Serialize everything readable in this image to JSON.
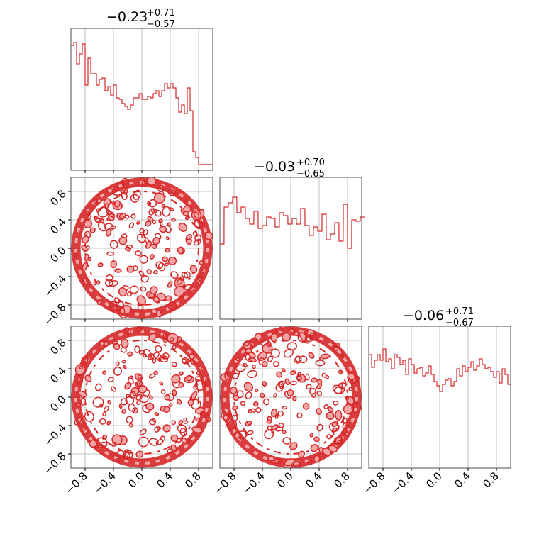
{
  "figure": {
    "background": "#ffffff",
    "accent": "#d62728",
    "fill_light": "#f4a6a6",
    "grid_color": "#b0b0b0"
  },
  "chart_data": {
    "type": "corner",
    "parameters": 3,
    "range": [
      -1,
      1
    ],
    "tick_values": [
      -0.8,
      -0.4,
      0.0,
      0.4,
      0.8
    ],
    "tick_labels": [
      "−0.8",
      "−0.4",
      "0.0",
      "0.4",
      "0.8"
    ],
    "grid": true,
    "titles": [
      {
        "main": "−0.23",
        "plus": "+0.71",
        "minus": "−0.57"
      },
      {
        "main": "−0.03",
        "plus": "+0.70",
        "minus": "−0.65"
      },
      {
        "main": "−0.06",
        "plus": "+0.71",
        "minus": "−0.67"
      }
    ],
    "histograms": [
      {
        "bins": [
          -1.0,
          -0.96,
          -0.92,
          -0.88,
          -0.84,
          -0.8,
          -0.76,
          -0.72,
          -0.68,
          -0.64,
          -0.6,
          -0.56,
          -0.52,
          -0.48,
          -0.44,
          -0.4,
          -0.36,
          -0.32,
          -0.28,
          -0.24,
          -0.2,
          -0.16,
          -0.12,
          -0.08,
          -0.04,
          0.0,
          0.04,
          0.08,
          0.12,
          0.16,
          0.2,
          0.24,
          0.28,
          0.32,
          0.36,
          0.4,
          0.44,
          0.48,
          0.52,
          0.56,
          0.6,
          0.64,
          0.68,
          0.72,
          0.76,
          0.8,
          0.84,
          0.88,
          0.92,
          0.96
        ],
        "values": [
          0.88,
          0.9,
          0.75,
          0.82,
          0.89,
          0.6,
          0.79,
          0.68,
          0.68,
          0.6,
          0.64,
          0.65,
          0.56,
          0.59,
          0.53,
          0.6,
          0.51,
          0.5,
          0.47,
          0.45,
          0.43,
          0.46,
          0.51,
          0.51,
          0.54,
          0.5,
          0.5,
          0.52,
          0.51,
          0.54,
          0.56,
          0.52,
          0.56,
          0.61,
          0.58,
          0.61,
          0.58,
          0.51,
          0.41,
          0.46,
          0.4,
          0.58,
          0.42,
          0.13,
          0.09,
          0.04,
          0.04,
          0.04,
          0.04,
          0.04
        ]
      },
      {
        "bins": [
          -1.0,
          -0.94,
          -0.88,
          -0.82,
          -0.76,
          -0.7,
          -0.64,
          -0.58,
          -0.52,
          -0.46,
          -0.4,
          -0.34,
          -0.28,
          -0.22,
          -0.16,
          -0.1,
          -0.04,
          0.02,
          0.08,
          0.14,
          0.2,
          0.26,
          0.32,
          0.38,
          0.44,
          0.5,
          0.56,
          0.62,
          0.68,
          0.74,
          0.8,
          0.86,
          0.92,
          0.98
        ],
        "values": [
          0.53,
          0.79,
          0.82,
          0.86,
          0.75,
          0.79,
          0.71,
          0.67,
          0.76,
          0.64,
          0.66,
          0.72,
          0.71,
          0.65,
          0.75,
          0.73,
          0.67,
          0.71,
          0.67,
          0.78,
          0.66,
          0.59,
          0.65,
          0.62,
          0.74,
          0.56,
          0.6,
          0.68,
          0.55,
          0.81,
          0.5,
          0.7,
          0.69,
          0.72
        ]
      },
      {
        "bins": [
          -1.0,
          -0.96,
          -0.92,
          -0.88,
          -0.84,
          -0.8,
          -0.76,
          -0.72,
          -0.68,
          -0.64,
          -0.6,
          -0.56,
          -0.52,
          -0.48,
          -0.44,
          -0.4,
          -0.36,
          -0.32,
          -0.28,
          -0.24,
          -0.2,
          -0.16,
          -0.12,
          -0.08,
          -0.04,
          0.0,
          0.04,
          0.08,
          0.12,
          0.16,
          0.2,
          0.24,
          0.28,
          0.32,
          0.36,
          0.4,
          0.44,
          0.48,
          0.52,
          0.56,
          0.6,
          0.64,
          0.68,
          0.72,
          0.76,
          0.8,
          0.84,
          0.88,
          0.92,
          0.96
        ],
        "values": [
          0.8,
          0.71,
          0.76,
          0.8,
          0.76,
          0.84,
          0.75,
          0.77,
          0.7,
          0.8,
          0.78,
          0.73,
          0.76,
          0.66,
          0.77,
          0.73,
          0.67,
          0.7,
          0.71,
          0.65,
          0.67,
          0.72,
          0.66,
          0.61,
          0.58,
          0.54,
          0.59,
          0.62,
          0.63,
          0.58,
          0.61,
          0.7,
          0.65,
          0.72,
          0.68,
          0.71,
          0.75,
          0.69,
          0.72,
          0.77,
          0.73,
          0.7,
          0.71,
          0.68,
          0.64,
          0.68,
          0.6,
          0.7,
          0.66,
          0.59
        ]
      }
    ],
    "contour_panels": [
      {
        "x_param": 1,
        "y_param": 2,
        "support": "unit disk, ring-shaped 2D density, sparse interior"
      },
      {
        "x_param": 1,
        "y_param": 3,
        "support": "unit disk, ring-shaped 2D density, sparse interior"
      },
      {
        "x_param": 2,
        "y_param": 3,
        "support": "unit disk, ring-shaped 2D density, sparse interior"
      }
    ]
  }
}
